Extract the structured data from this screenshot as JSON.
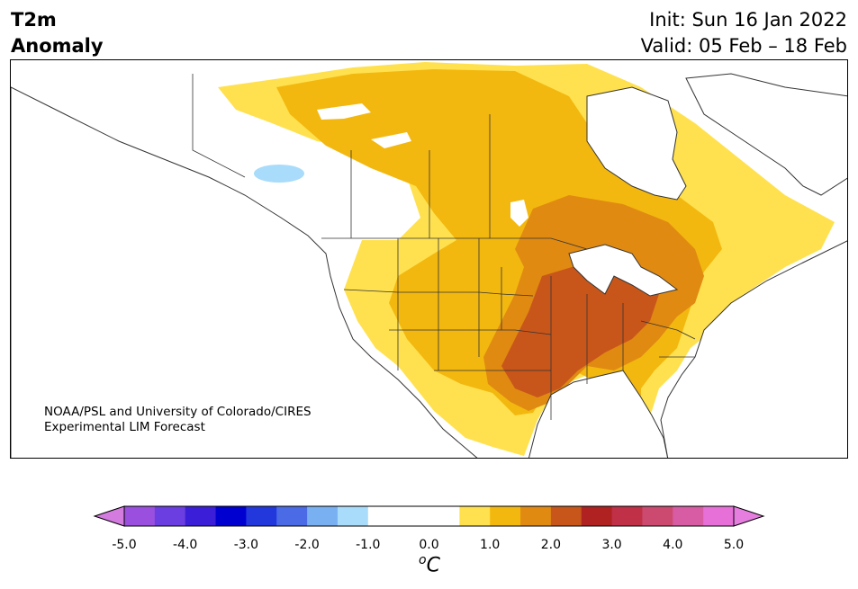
{
  "header": {
    "title_line1": "T2m",
    "title_line2": "Anomaly",
    "init": "Init: Sun 16 Jan 2022",
    "valid": "Valid: 05 Feb – 18 Feb"
  },
  "credit": {
    "line1": "NOAA/PSL and University of Colorado/CIRES",
    "line2": "Experimental LIM Forecast"
  },
  "colorbar": {
    "unit_base": "C",
    "unit_super": "o",
    "ticks": [
      "-5.0",
      "-4.0",
      "-3.0",
      "-2.0",
      "-1.0",
      "0.0",
      "1.0",
      "2.0",
      "3.0",
      "4.0",
      "5.0"
    ],
    "bins": [
      {
        "min": -5.0,
        "max": -4.5,
        "color": "#9a4fdf"
      },
      {
        "min": -4.5,
        "max": -4.0,
        "color": "#6a3ee0"
      },
      {
        "min": -4.0,
        "max": -3.5,
        "color": "#3a1ed8"
      },
      {
        "min": -3.5,
        "max": -3.0,
        "color": "#0000d0"
      },
      {
        "min": -3.0,
        "max": -2.5,
        "color": "#2238dc"
      },
      {
        "min": -2.5,
        "max": -2.0,
        "color": "#4a6ae6"
      },
      {
        "min": -2.0,
        "max": -1.5,
        "color": "#78b0f2"
      },
      {
        "min": -1.5,
        "max": -1.0,
        "color": "#a8dcfa"
      },
      {
        "min": -1.0,
        "max": 0.5,
        "color": "#ffffff"
      },
      {
        "min": 0.5,
        "max": 1.0,
        "color": "#ffe14f"
      },
      {
        "min": 1.0,
        "max": 1.5,
        "color": "#f3b80f"
      },
      {
        "min": 1.5,
        "max": 2.0,
        "color": "#e08a12"
      },
      {
        "min": 2.0,
        "max": 2.5,
        "color": "#c8561a"
      },
      {
        "min": 2.5,
        "max": 3.0,
        "color": "#b02222"
      },
      {
        "min": 3.0,
        "max": 3.5,
        "color": "#c03046"
      },
      {
        "min": 3.5,
        "max": 4.0,
        "color": "#cc4a70"
      },
      {
        "min": 4.0,
        "max": 4.5,
        "color": "#d85ca4"
      },
      {
        "min": 4.5,
        "max": 5.0,
        "color": "#e670d8"
      }
    ],
    "under_color": "#d47be0",
    "over_color": "#e67ee0"
  },
  "map": {
    "region": "North America",
    "field": "2 m temperature anomaly",
    "anomaly_levels_shown": [
      {
        "color": "#ffe14f",
        "range": "0.5 to 1.0"
      },
      {
        "color": "#f3b80f",
        "range": "1.0 to 1.5"
      },
      {
        "color": "#e08a12",
        "range": "1.5 to 2.0"
      },
      {
        "color": "#c8561a",
        "range": "2.0 to 2.5"
      },
      {
        "color": "#a8dcfa",
        "range": "-1.5 to -1.0"
      }
    ]
  }
}
